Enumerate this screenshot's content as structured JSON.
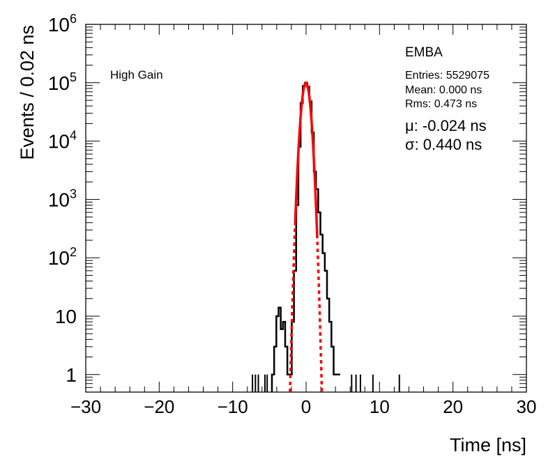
{
  "chart_data": {
    "type": "line",
    "title": "",
    "xlabel": "Time [ns]",
    "ylabel": "Events / 0.02 ns",
    "xlim": [
      -30,
      30
    ],
    "ylim": [
      0.5,
      1000000
    ],
    "yscale": "log",
    "grid": false,
    "x_ticks": [
      "−30",
      "−20",
      "−10",
      "0",
      "10",
      "20",
      "30"
    ],
    "x_tick_values": [
      -30,
      -20,
      -10,
      0,
      10,
      20,
      30
    ],
    "y_ticks": [
      {
        "base": "1",
        "exp": "",
        "value": 1
      },
      {
        "base": "10",
        "exp": "",
        "value": 10
      },
      {
        "base": "10",
        "exp": "2",
        "value": 100
      },
      {
        "base": "10",
        "exp": "3",
        "value": 1000
      },
      {
        "base": "10",
        "exp": "4",
        "value": 10000
      },
      {
        "base": "10",
        "exp": "5",
        "value": 100000
      },
      {
        "base": "10",
        "exp": "6",
        "value": 1000000
      }
    ],
    "annotations": {
      "gain": "High Gain",
      "partition": "EMBA",
      "entries": "Entries: 5529075",
      "mean": "Mean: 0.000 ns",
      "rms": "Rms: 0.473 ns",
      "mu": "μ: -0.024 ns",
      "sigma": "σ: 0.440 ns"
    },
    "series": [
      {
        "color": "#000000",
        "style": "histogram",
        "x": [
          -4.5,
          -4.2,
          -3.9,
          -3.6,
          -3.3,
          -3.0,
          -2.7,
          -2.4,
          -2.1,
          -1.8,
          -1.5,
          -1.2,
          -0.9,
          -0.6,
          -0.3,
          0.0,
          0.3,
          0.6,
          0.9,
          1.2,
          1.5,
          1.8,
          2.1,
          2.4,
          2.7,
          3.0,
          3.3,
          3.6,
          3.9,
          4.2,
          4.5
        ],
        "y": [
          1,
          3,
          10,
          14,
          6,
          8,
          3,
          1,
          1,
          8,
          60,
          800,
          8000,
          45000,
          88000,
          100000,
          85000,
          48000,
          14000,
          3000,
          1500,
          600,
          250,
          120,
          60,
          20,
          8,
          3,
          1,
          1,
          1
        ]
      },
      {
        "color": "#ff0000",
        "style": "gaussian-fit",
        "amplitude": 100000,
        "mu": -0.024,
        "sigma": 0.44,
        "fit_range": [
          -1.5,
          1.5
        ],
        "dashed_extension": [
          -2.2,
          2.2
        ]
      }
    ]
  }
}
